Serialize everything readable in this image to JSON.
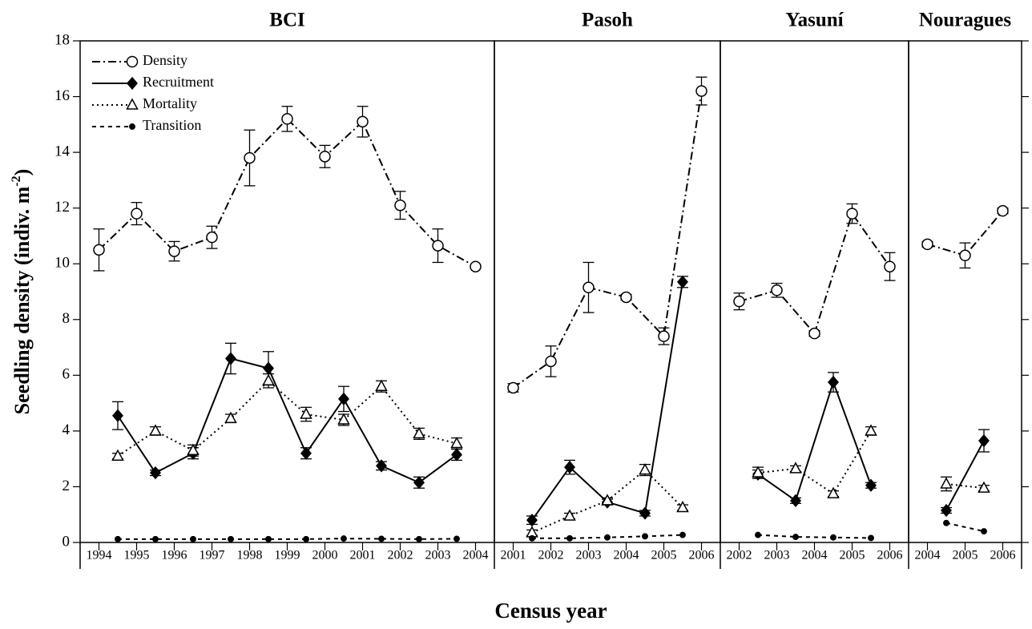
{
  "chart_data": [
    {
      "type": "line",
      "title": "BCI",
      "xlim": [
        1993.5,
        2004.5
      ],
      "xticks": [
        1994,
        1995,
        1996,
        1997,
        1998,
        1999,
        2000,
        2001,
        2002,
        2003,
        2004
      ],
      "ylim": [
        0,
        18
      ],
      "yticks": [
        0,
        2,
        4,
        6,
        8,
        10,
        12,
        14,
        16,
        18
      ],
      "y_label": [
        "Seedling density (indiv. m",
        "-2",
        ")"
      ],
      "x_label": "Census year",
      "legend": "upper left",
      "series": [
        {
          "name": "Density",
          "color": "#000000",
          "style": "dashdot",
          "marker": "open-circle",
          "x": [
            1994,
            1995,
            1996,
            1997,
            1998,
            1999,
            2000,
            2001,
            2002,
            2003,
            2004
          ],
          "values": [
            10.5,
            11.8,
            10.45,
            10.95,
            13.8,
            15.2,
            13.85,
            15.1,
            12.1,
            10.65,
            9.9
          ],
          "errors": [
            0.75,
            0.4,
            0.35,
            0.4,
            1.0,
            0.45,
            0.4,
            0.55,
            0.5,
            0.6,
            0.05
          ]
        },
        {
          "name": "Recruitment",
          "color": "#000000",
          "style": "solid",
          "marker": "filled-diamond",
          "x": [
            1994.5,
            1995.5,
            1996.5,
            1997.5,
            1998.5,
            1999.5,
            2000.5,
            2001.5,
            2002.5,
            2003.5
          ],
          "values": [
            4.55,
            2.5,
            3.2,
            6.6,
            6.25,
            3.2,
            5.15,
            2.75,
            2.15,
            3.15
          ],
          "errors": [
            0.5,
            0.1,
            0.2,
            0.55,
            0.6,
            0.2,
            0.45,
            0.15,
            0.2,
            0.2
          ]
        },
        {
          "name": "Mortality",
          "color": "#000000",
          "style": "dotted",
          "marker": "open-triangle",
          "x": [
            1994.5,
            1995.5,
            1996.5,
            1997.5,
            1998.5,
            1999.5,
            2000.5,
            2001.5,
            2002.5,
            2003.5
          ],
          "values": [
            3.1,
            4.0,
            3.3,
            4.45,
            5.8,
            4.6,
            4.4,
            5.6,
            3.9,
            3.55
          ],
          "errors": [
            0.1,
            0.15,
            0.2,
            0.15,
            0.25,
            0.25,
            0.2,
            0.2,
            0.2,
            0.2
          ]
        },
        {
          "name": "Transition",
          "color": "#000000",
          "style": "dashed",
          "marker": "filled-dot",
          "x": [
            1994.5,
            1995.5,
            1996.5,
            1997.5,
            1998.5,
            1999.5,
            2000.5,
            2001.5,
            2002.5,
            2003.5
          ],
          "values": [
            0.12,
            0.12,
            0.12,
            0.12,
            0.12,
            0.12,
            0.14,
            0.13,
            0.12,
            0.13
          ]
        }
      ]
    },
    {
      "type": "line",
      "title": "Pasoh",
      "xlim": [
        2000.5,
        2006.5
      ],
      "xticks": [
        2001,
        2002,
        2003,
        2004,
        2005,
        2006
      ],
      "ylim": [
        0,
        18
      ],
      "series": [
        {
          "x": [
            2001,
            2002,
            2003,
            2004,
            2005,
            2006
          ],
          "values": [
            5.55,
            6.5,
            9.15,
            8.8,
            7.4,
            16.2
          ],
          "errors": [
            0.15,
            0.55,
            0.9,
            0.1,
            0.3,
            0.5
          ]
        },
        {
          "x": [
            2001.5,
            2002.5,
            2003.5,
            2004.5,
            2005.5
          ],
          "values": [
            0.8,
            2.7,
            1.45,
            1.05,
            9.35
          ],
          "errors": [
            0.15,
            0.25,
            0.1,
            0.1,
            0.2
          ]
        },
        {
          "x": [
            2001.5,
            2002.5,
            2003.5,
            2004.5,
            2005.5
          ],
          "values": [
            0.35,
            0.95,
            1.5,
            2.6,
            1.25
          ],
          "errors": [
            0.1,
            0.1,
            0.1,
            0.2,
            0.1
          ]
        },
        {
          "x": [
            2001.5,
            2002.5,
            2003.5,
            2004.5,
            2005.5
          ],
          "values": [
            0.15,
            0.15,
            0.18,
            0.22,
            0.27
          ]
        }
      ]
    },
    {
      "type": "line",
      "title": "Yasuní",
      "xlim": [
        2001.5,
        2006.5
      ],
      "xticks": [
        2002,
        2003,
        2004,
        2005,
        2006
      ],
      "ylim": [
        0,
        18
      ],
      "series": [
        {
          "x": [
            2002,
            2003,
            2004,
            2005,
            2006
          ],
          "values": [
            8.65,
            9.05,
            7.5,
            11.8,
            9.9
          ],
          "errors": [
            0.3,
            0.25,
            0.1,
            0.35,
            0.5
          ]
        },
        {
          "x": [
            2002.5,
            2003.5,
            2004.5,
            2005.5
          ],
          "values": [
            2.45,
            1.5,
            5.75,
            2.05
          ],
          "errors": [
            0.15,
            0.1,
            0.35,
            0.1
          ]
        },
        {
          "x": [
            2002.5,
            2003.5,
            2004.5,
            2005.5
          ],
          "values": [
            2.5,
            2.65,
            1.75,
            4.0
          ],
          "errors": [
            0.2,
            0.1,
            0.1,
            0.15
          ]
        },
        {
          "x": [
            2002.5,
            2003.5,
            2004.5,
            2005.5
          ],
          "values": [
            0.27,
            0.2,
            0.18,
            0.16
          ]
        }
      ]
    },
    {
      "type": "line",
      "title": "Nouragues",
      "xlim": [
        2003.5,
        2006.5
      ],
      "xticks": [
        2004,
        2005,
        2006
      ],
      "ylim": [
        0,
        18
      ],
      "yticks": [
        0,
        2,
        4,
        6,
        8,
        10,
        12,
        14,
        16,
        18
      ],
      "series": [
        {
          "x": [
            2004,
            2005,
            2006
          ],
          "values": [
            10.7,
            10.3,
            11.9
          ],
          "errors": [
            0.1,
            0.45,
            0.1
          ]
        },
        {
          "x": [
            2004.5,
            2005.5
          ],
          "values": [
            1.15,
            3.65
          ],
          "errors": [
            0.1,
            0.4
          ]
        },
        {
          "x": [
            2004.5,
            2005.5
          ],
          "values": [
            2.1,
            1.95
          ],
          "errors": [
            0.25,
            0.1
          ]
        },
        {
          "x": [
            2004.5,
            2005.5
          ],
          "values": [
            0.7,
            0.4
          ]
        }
      ]
    }
  ]
}
